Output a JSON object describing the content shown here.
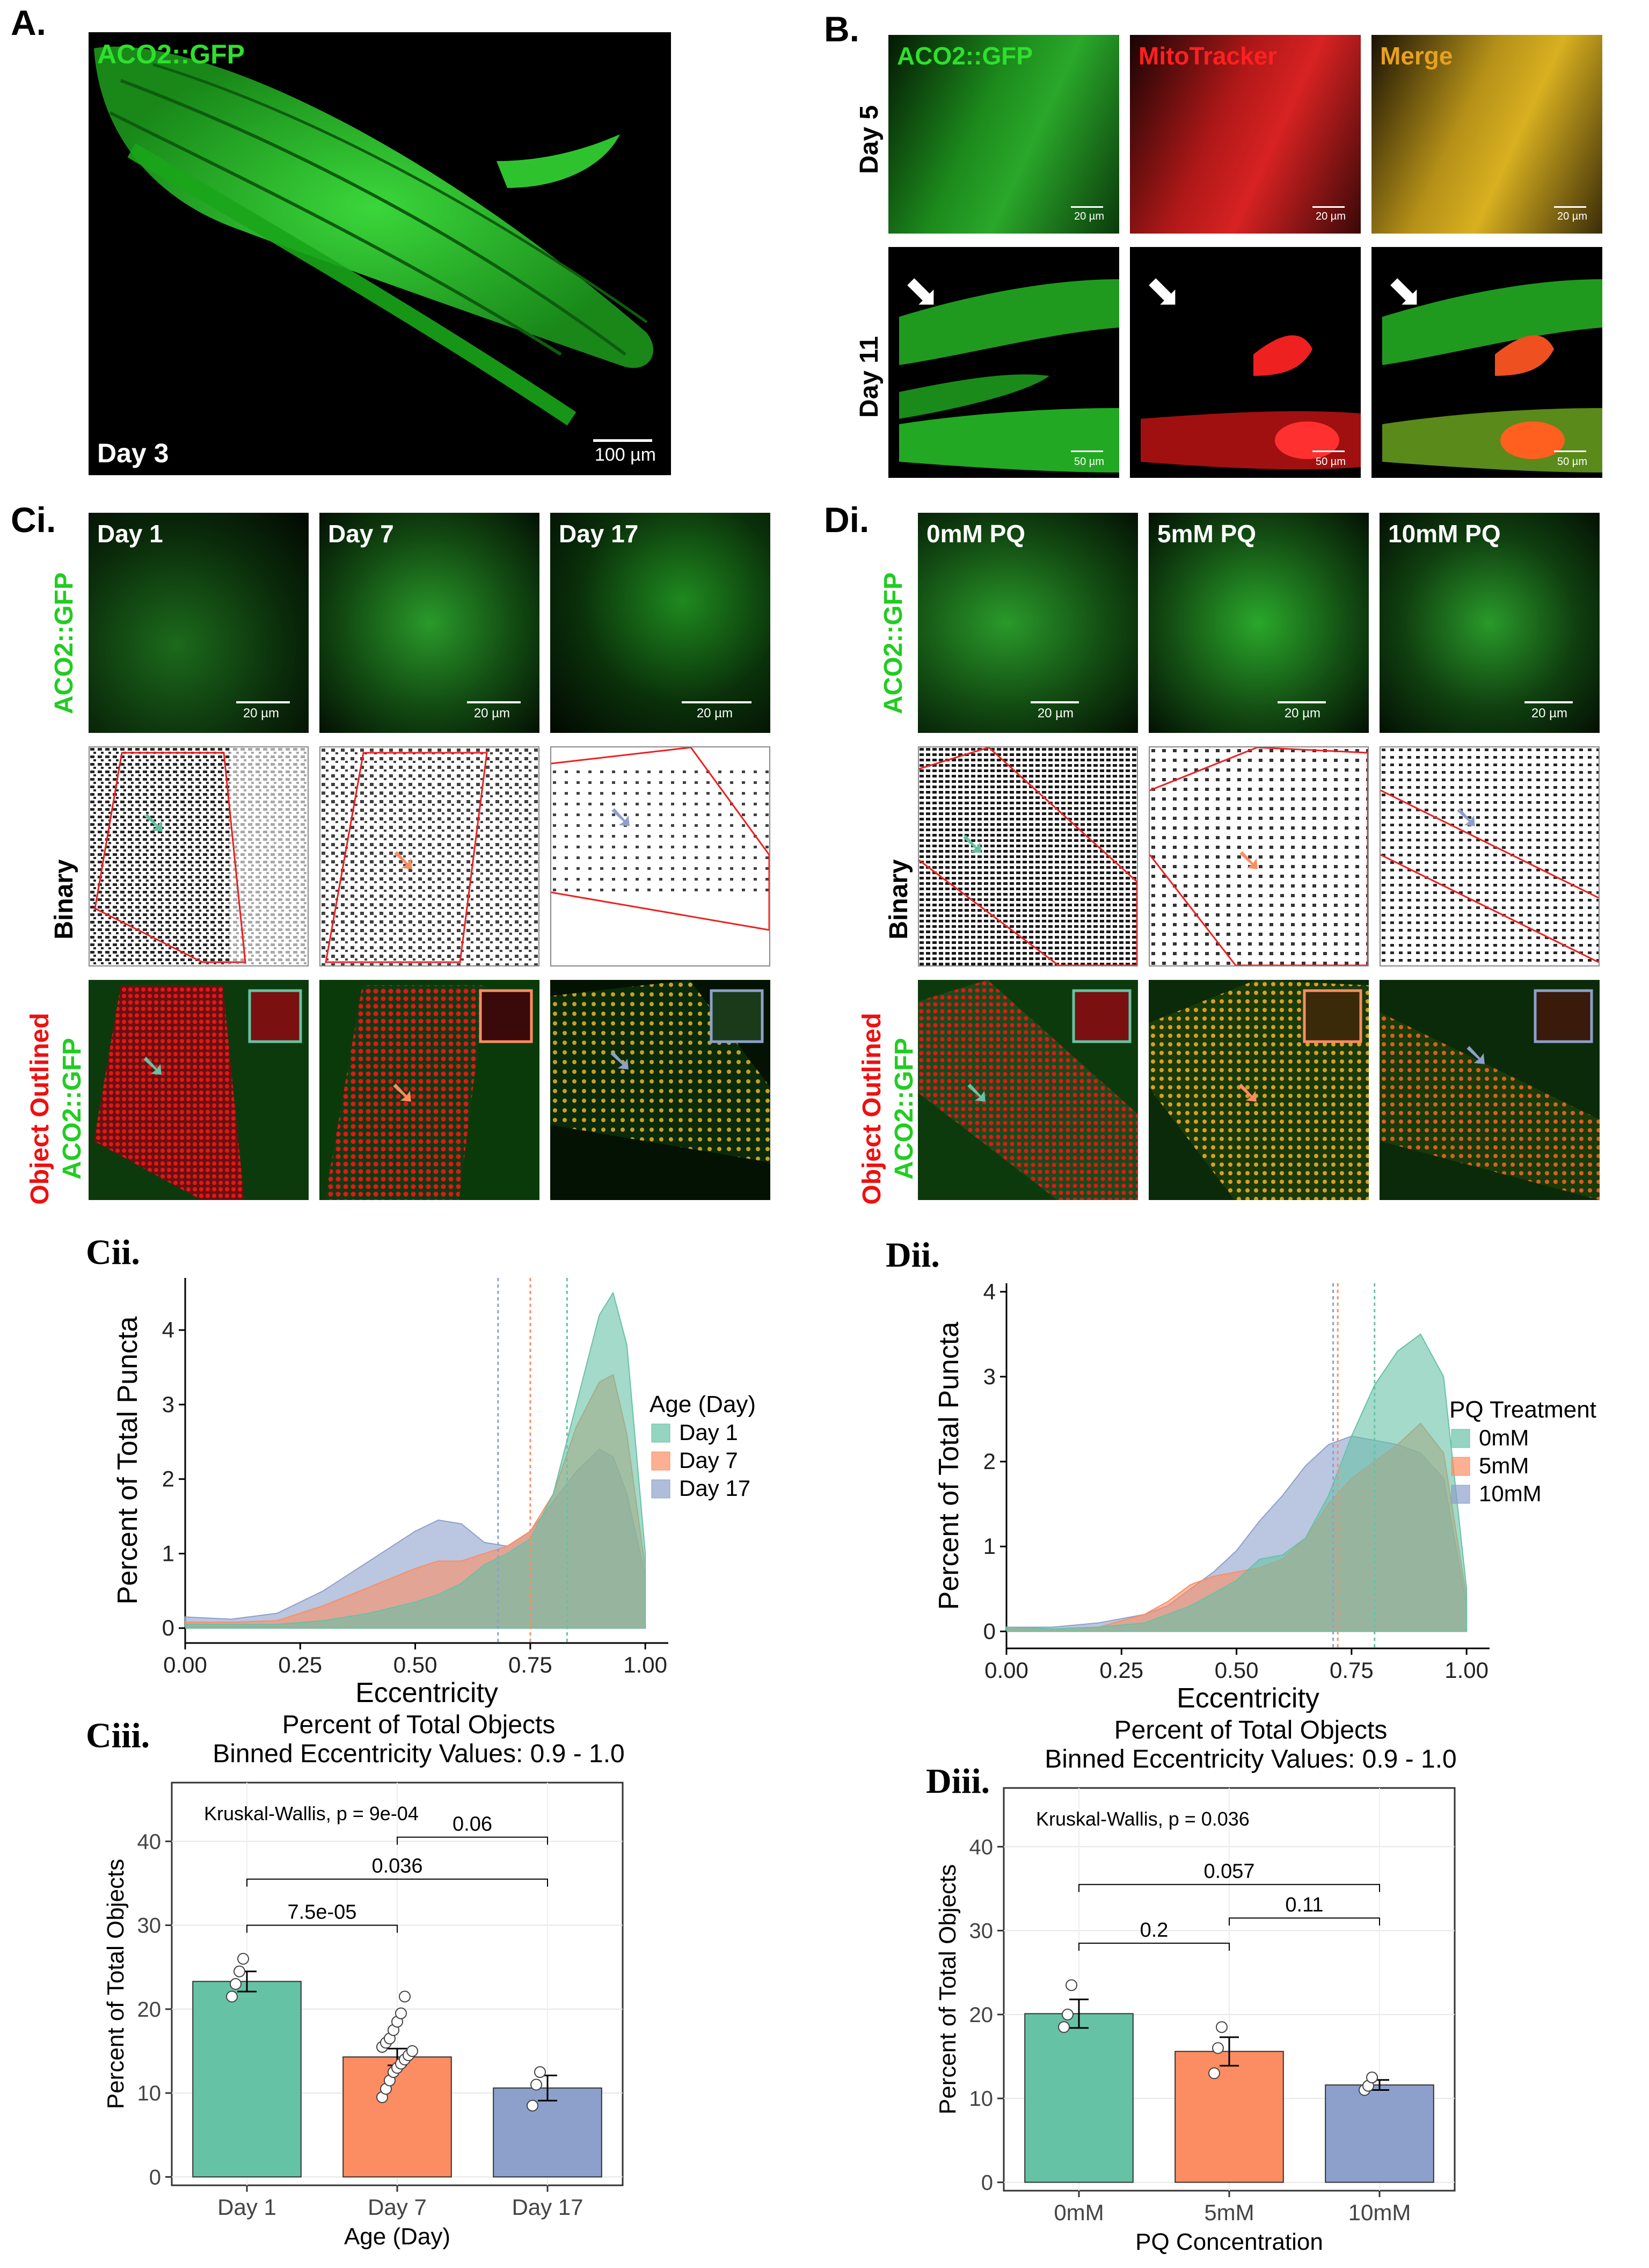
{
  "panel_labels": {
    "a": "A.",
    "b": "B.",
    "ci": "Ci.",
    "di": "Di.",
    "cii": "Cii.",
    "dii": "Dii.",
    "ciii": "Ciii.",
    "diii": "Diii."
  },
  "panel_a": {
    "label": "ACO2::GFP",
    "day": "Day 3",
    "scale": "100 µm"
  },
  "panel_b": {
    "columns": [
      "ACO2::GFP",
      "MitoTracker",
      "Merge"
    ],
    "rows": [
      "Day 5",
      "Day 11"
    ],
    "scale_top": "20 µm",
    "scale_bottom": "50 µm"
  },
  "panel_ci": {
    "columns": [
      "Day 1",
      "Day 7",
      "Day 17"
    ],
    "row_labels": {
      "gfp": "ACO2::GFP",
      "binary": "Binary",
      "outlined_red": "Object Outlined",
      "outlined_green": "ACO2::GFP"
    },
    "scale": "20 µm"
  },
  "panel_di": {
    "columns": [
      "0mM PQ",
      "5mM PQ",
      "10mM PQ"
    ],
    "row_labels": {
      "gfp": "ACO2::GFP",
      "binary": "Binary",
      "outlined_red": "Object Outlined",
      "outlined_green": "ACO2::GFP"
    },
    "scale": "20 µm"
  },
  "colors": {
    "c1": "#66c2a5",
    "c2": "#fc8d62",
    "c3": "#8da0cb",
    "gfp": "#33dd33",
    "red": "#ff2020",
    "merge": "#e8a020"
  },
  "chart_data": [
    {
      "id": "cii",
      "type": "area",
      "xlabel": "Eccentricity",
      "ylabel": "Percent of Total Puncta",
      "xlim": [
        0,
        1.05
      ],
      "ylim": [
        -0.2,
        4.7
      ],
      "xticks": [
        "0.00",
        "0.25",
        "0.50",
        "0.75",
        "1.00"
      ],
      "yticks": [
        "0",
        "1",
        "2",
        "3",
        "4"
      ],
      "legend_title": "Age (Day)",
      "x": [
        0.0,
        0.1,
        0.2,
        0.3,
        0.4,
        0.5,
        0.55,
        0.6,
        0.65,
        0.7,
        0.75,
        0.8,
        0.85,
        0.9,
        0.93,
        0.96,
        1.0
      ],
      "series": [
        {
          "name": "Day 1",
          "values": [
            0.05,
            0.05,
            0.05,
            0.1,
            0.2,
            0.35,
            0.45,
            0.6,
            0.85,
            1.0,
            1.2,
            1.8,
            3.0,
            4.2,
            4.5,
            3.8,
            1.0
          ]
        },
        {
          "name": "Day 7",
          "values": [
            0.08,
            0.08,
            0.1,
            0.3,
            0.55,
            0.8,
            0.9,
            0.9,
            1.0,
            1.1,
            1.3,
            1.8,
            2.7,
            3.3,
            3.4,
            2.6,
            0.8
          ]
        },
        {
          "name": "Day 17",
          "values": [
            0.15,
            0.12,
            0.2,
            0.5,
            0.9,
            1.3,
            1.45,
            1.4,
            1.15,
            1.1,
            1.3,
            1.7,
            2.1,
            2.4,
            2.3,
            1.8,
            0.7
          ]
        }
      ],
      "medians": [
        0.83,
        0.75,
        0.68
      ]
    },
    {
      "id": "dii",
      "type": "area",
      "xlabel": "Eccentricity",
      "ylabel": "Percent of Total Puncta",
      "xlim": [
        0,
        1.05
      ],
      "ylim": [
        -0.2,
        4.1
      ],
      "xticks": [
        "0.00",
        "0.25",
        "0.50",
        "0.75",
        "1.00"
      ],
      "yticks": [
        "0",
        "1",
        "2",
        "3",
        "4"
      ],
      "legend_title": "PQ Treatment",
      "x": [
        0.0,
        0.1,
        0.2,
        0.3,
        0.35,
        0.4,
        0.45,
        0.5,
        0.55,
        0.6,
        0.65,
        0.7,
        0.75,
        0.8,
        0.85,
        0.9,
        0.95,
        1.0
      ],
      "series": [
        {
          "name": "0mM",
          "values": [
            0.05,
            0.03,
            0.05,
            0.1,
            0.2,
            0.3,
            0.45,
            0.6,
            0.85,
            0.9,
            1.1,
            1.6,
            2.3,
            2.9,
            3.3,
            3.5,
            3.0,
            0.5
          ]
        },
        {
          "name": "5mM",
          "values": [
            0.03,
            0.03,
            0.05,
            0.2,
            0.35,
            0.55,
            0.65,
            0.7,
            0.75,
            0.85,
            1.1,
            1.5,
            1.8,
            2.0,
            2.2,
            2.45,
            2.1,
            0.4
          ]
        },
        {
          "name": "10mM",
          "values": [
            0.05,
            0.05,
            0.1,
            0.2,
            0.3,
            0.5,
            0.7,
            0.95,
            1.3,
            1.6,
            1.95,
            2.2,
            2.3,
            2.25,
            2.2,
            2.1,
            1.8,
            0.3
          ]
        }
      ],
      "medians": [
        0.8,
        0.72,
        0.71
      ]
    },
    {
      "id": "ciii",
      "type": "bar",
      "title": "Percent of Total Objects",
      "subtitle": "Binned Eccentricity Values: 0.9 - 1.0",
      "xlabel": "Age (Day)",
      "ylabel": "Percent of Total Objects",
      "categories": [
        "Day 1",
        "Day 7",
        "Day 17"
      ],
      "values": [
        23.3,
        14.3,
        10.6
      ],
      "errors": [
        1.2,
        1.0,
        1.5
      ],
      "points": [
        [
          21.5,
          23.0,
          24.5,
          26.0
        ],
        [
          9.5,
          10.5,
          11.5,
          12.5,
          13.0,
          13.5,
          14.0,
          14.5,
          15.0,
          15.5,
          16.0,
          16.5,
          17.5,
          18.5,
          19.5,
          21.5
        ],
        [
          8.5,
          11.0,
          12.5
        ]
      ],
      "ylim": [
        -1,
        47
      ],
      "yticks": [
        "0",
        "10",
        "20",
        "30",
        "40"
      ],
      "test_label": "Kruskal-Wallis, p = 9e-04",
      "brackets": [
        {
          "from": 0,
          "to": 1,
          "y": 30,
          "label": "7.5e-05"
        },
        {
          "from": 0,
          "to": 2,
          "y": 35.5,
          "label": "0.036"
        },
        {
          "from": 1,
          "to": 2,
          "y": 40.5,
          "label": "0.06"
        }
      ]
    },
    {
      "id": "diii",
      "type": "bar",
      "title": "Percent of Total Objects",
      "subtitle": "Binned Eccentricity Values: 0.9 - 1.0",
      "xlabel": "PQ Concentration",
      "ylabel": "Percent of Total Objects",
      "categories": [
        "0mM",
        "5mM",
        "10mM"
      ],
      "values": [
        20.1,
        15.6,
        11.6
      ],
      "errors": [
        1.7,
        1.7,
        0.6
      ],
      "points": [
        [
          18.5,
          20.0,
          23.5
        ],
        [
          13.0,
          16.0,
          18.5
        ],
        [
          11.0,
          11.5,
          12.5
        ]
      ],
      "ylim": [
        -1,
        47
      ],
      "yticks": [
        "0",
        "10",
        "20",
        "30",
        "40"
      ],
      "test_label": "Kruskal-Wallis, p = 0.036",
      "brackets": [
        {
          "from": 0,
          "to": 1,
          "y": 28.5,
          "label": "0.2"
        },
        {
          "from": 1,
          "to": 2,
          "y": 31.5,
          "label": "0.11"
        },
        {
          "from": 0,
          "to": 2,
          "y": 35.5,
          "label": "0.057"
        }
      ]
    }
  ]
}
